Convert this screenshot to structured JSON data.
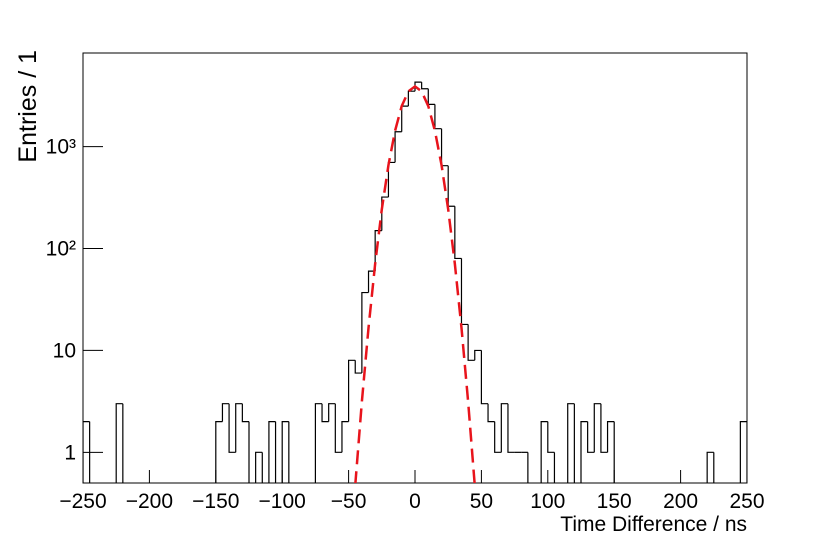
{
  "chart_data": {
    "type": "histogram",
    "xlabel": "Time Difference / ns",
    "ylabel": "Entries / 1",
    "log_y": true,
    "xlim": [
      -250,
      250
    ],
    "ylim": [
      0.5,
      8300
    ],
    "xticks": [
      {
        "value": -250,
        "label": "−250"
      },
      {
        "value": -200,
        "label": "−200"
      },
      {
        "value": -150,
        "label": "−150"
      },
      {
        "value": -100,
        "label": "−100"
      },
      {
        "value": -50,
        "label": "−50"
      },
      0,
      50,
      100,
      150,
      200,
      250
    ],
    "yticks": [
      1,
      10,
      {
        "value": 100,
        "label": "10²"
      },
      {
        "value": 1000,
        "label": "10³"
      }
    ],
    "histogram": {
      "color": "#000000",
      "bins": [
        -250,
        -245,
        -240,
        -235,
        -230,
        -225,
        -220,
        -215,
        -210,
        -205,
        -200,
        -195,
        -190,
        -185,
        -180,
        -175,
        -170,
        -165,
        -160,
        -155,
        -150,
        -145,
        -140,
        -135,
        -130,
        -125,
        -120,
        -115,
        -110,
        -105,
        -100,
        -95,
        -90,
        -85,
        -80,
        -75,
        -70,
        -65,
        -60,
        -55,
        -50,
        -45,
        -40,
        -35,
        -30,
        -25,
        -20,
        -15,
        -10,
        -5,
        0,
        5,
        10,
        15,
        20,
        25,
        30,
        35,
        40,
        45,
        50,
        55,
        60,
        65,
        70,
        75,
        80,
        85,
        90,
        95,
        100,
        105,
        110,
        115,
        120,
        125,
        130,
        135,
        140,
        145,
        150,
        155,
        160,
        165,
        170,
        175,
        180,
        185,
        190,
        195,
        200,
        205,
        210,
        215,
        220,
        225,
        230,
        235,
        240,
        245,
        250
      ],
      "values": [
        2,
        0,
        0,
        0,
        0,
        3,
        0,
        0,
        0,
        0,
        0,
        0,
        0,
        0,
        0,
        0,
        0,
        0,
        0,
        0,
        2,
        3,
        1,
        3,
        2,
        0,
        1,
        0,
        2,
        0,
        2,
        0,
        0,
        0,
        0,
        3,
        2,
        3,
        1,
        2,
        8,
        6,
        37,
        60,
        150,
        320,
        700,
        1400,
        2500,
        3500,
        4300,
        3700,
        2600,
        1500,
        650,
        260,
        80,
        18,
        8,
        10,
        3,
        2,
        1,
        3,
        1,
        1,
        1,
        0,
        0,
        2,
        1,
        0,
        0,
        3,
        0,
        2,
        1,
        3,
        1,
        2,
        0,
        0,
        0,
        0,
        0,
        0,
        0,
        0,
        0,
        0,
        0,
        0,
        0,
        0,
        1,
        0,
        0,
        0,
        0,
        2
      ]
    },
    "fit": {
      "color": "#e8141c",
      "dash": true,
      "x": [
        -45,
        -40,
        -35,
        -30,
        -25,
        -20,
        -15,
        -10,
        -5,
        0,
        5,
        10,
        15,
        20,
        25,
        30,
        35,
        40,
        45
      ],
      "values": [
        0.476,
        3.15,
        16.7,
        71,
        242,
        658,
        1432,
        2500,
        3490,
        3900,
        3490,
        2500,
        1432,
        658,
        242,
        71,
        16.7,
        3.15,
        0.476
      ]
    }
  }
}
